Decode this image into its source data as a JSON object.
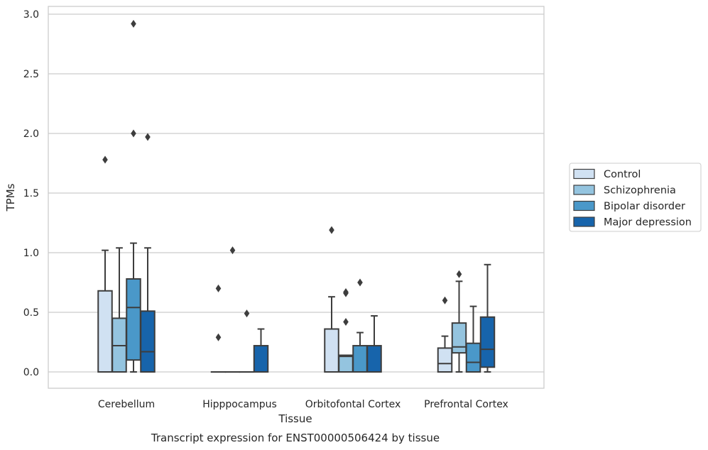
{
  "chart_data": {
    "type": "box",
    "caption": "Transcript expression for ENST00000506424 by tissue",
    "xlabel": "Tissue",
    "ylabel": "TPMs",
    "ylim": [
      -0.14,
      3.07
    ],
    "yticks": [
      "0.0",
      "0.5",
      "1.0",
      "1.5",
      "2.0",
      "2.5",
      "3.0"
    ],
    "categories": [
      "Cerebellum",
      "Hipppocampus",
      "Orbitofontal Cortex",
      "Prefrontal Cortex"
    ],
    "grid": "horizontal",
    "legend_position": "right",
    "series": [
      {
        "name": "Control",
        "color": "#d0e1f2",
        "boxes": [
          {
            "whisker_low": 0.0,
            "q1": 0.0,
            "median": 0.0,
            "q3": 0.68,
            "whisker_high": 1.02,
            "outliers": [
              1.78
            ]
          },
          {
            "whisker_low": 0.0,
            "q1": 0.0,
            "median": 0.0,
            "q3": 0.0,
            "whisker_high": 0.0,
            "outliers": [
              0.7,
              0.29
            ]
          },
          {
            "whisker_low": 0.0,
            "q1": 0.0,
            "median": 0.0,
            "q3": 0.36,
            "whisker_high": 0.63,
            "outliers": [
              1.19
            ]
          },
          {
            "whisker_low": 0.0,
            "q1": 0.0,
            "median": 0.07,
            "q3": 0.2,
            "whisker_high": 0.3,
            "outliers": [
              0.6
            ]
          }
        ]
      },
      {
        "name": "Schizophrenia",
        "color": "#94c4df",
        "boxes": [
          {
            "whisker_low": 0.0,
            "q1": 0.0,
            "median": 0.22,
            "q3": 0.45,
            "whisker_high": 1.04,
            "outliers": []
          },
          {
            "whisker_low": 0.0,
            "q1": 0.0,
            "median": 0.0,
            "q3": 0.0,
            "whisker_high": 0.0,
            "outliers": [
              1.02
            ]
          },
          {
            "whisker_low": 0.0,
            "q1": 0.0,
            "median": 0.13,
            "q3": 0.14,
            "whisker_high": 0.14,
            "outliers": [
              0.66,
              0.67,
              0.42
            ]
          },
          {
            "whisker_low": 0.0,
            "q1": 0.16,
            "median": 0.21,
            "q3": 0.41,
            "whisker_high": 0.76,
            "outliers": [
              0.82
            ]
          }
        ]
      },
      {
        "name": "Bipolar disorder",
        "color": "#4a98c9",
        "boxes": [
          {
            "whisker_low": 0.0,
            "q1": 0.1,
            "median": 0.54,
            "q3": 0.78,
            "whisker_high": 1.08,
            "outliers": [
              2.92,
              2.0
            ]
          },
          {
            "whisker_low": 0.0,
            "q1": 0.0,
            "median": 0.0,
            "q3": 0.0,
            "whisker_high": 0.0,
            "outliers": [
              0.49
            ]
          },
          {
            "whisker_low": 0.0,
            "q1": 0.0,
            "median": 0.0,
            "q3": 0.22,
            "whisker_high": 0.33,
            "outliers": [
              0.75
            ]
          },
          {
            "whisker_low": 0.0,
            "q1": 0.0,
            "median": 0.08,
            "q3": 0.24,
            "whisker_high": 0.55,
            "outliers": []
          }
        ]
      },
      {
        "name": "Major depression",
        "color": "#1764ab",
        "boxes": [
          {
            "whisker_low": 0.0,
            "q1": 0.0,
            "median": 0.17,
            "q3": 0.51,
            "whisker_high": 1.04,
            "outliers": [
              1.97
            ]
          },
          {
            "whisker_low": 0.0,
            "q1": 0.0,
            "median": 0.0,
            "q3": 0.22,
            "whisker_high": 0.36,
            "outliers": []
          },
          {
            "whisker_low": 0.0,
            "q1": 0.0,
            "median": 0.0,
            "q3": 0.22,
            "whisker_high": 0.47,
            "outliers": []
          },
          {
            "whisker_low": 0.0,
            "q1": 0.04,
            "median": 0.19,
            "q3": 0.46,
            "whisker_high": 0.9,
            "outliers": []
          }
        ]
      }
    ]
  }
}
